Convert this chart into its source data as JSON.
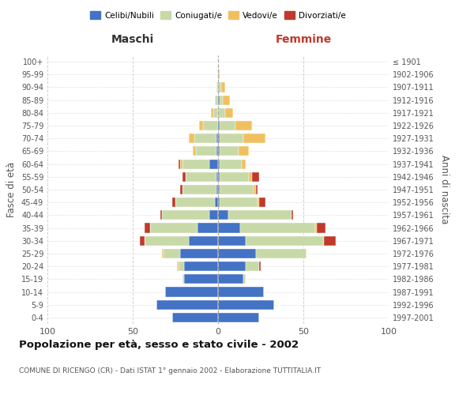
{
  "age_groups": [
    "0-4",
    "5-9",
    "10-14",
    "15-19",
    "20-24",
    "25-29",
    "30-34",
    "35-39",
    "40-44",
    "45-49",
    "50-54",
    "55-59",
    "60-64",
    "65-69",
    "70-74",
    "75-79",
    "80-84",
    "85-89",
    "90-94",
    "95-99",
    "100+"
  ],
  "birth_years": [
    "1997-2001",
    "1992-1996",
    "1987-1991",
    "1982-1986",
    "1977-1981",
    "1972-1976",
    "1967-1971",
    "1962-1966",
    "1957-1961",
    "1952-1956",
    "1947-1951",
    "1942-1946",
    "1937-1941",
    "1932-1936",
    "1927-1931",
    "1922-1926",
    "1917-1921",
    "1912-1916",
    "1907-1911",
    "1902-1906",
    "≤ 1901"
  ],
  "male_celibi": [
    27,
    36,
    31,
    20,
    20,
    22,
    17,
    12,
    5,
    2,
    1,
    1,
    5,
    1,
    1,
    0,
    0,
    0,
    0,
    0,
    0
  ],
  "male_coniugati": [
    0,
    0,
    0,
    1,
    3,
    10,
    26,
    28,
    28,
    23,
    20,
    18,
    16,
    12,
    13,
    9,
    3,
    2,
    1,
    0,
    0
  ],
  "male_vedovi": [
    0,
    0,
    0,
    0,
    1,
    1,
    0,
    0,
    0,
    0,
    0,
    0,
    1,
    2,
    3,
    2,
    1,
    0,
    0,
    0,
    0
  ],
  "male_divorziati": [
    0,
    0,
    0,
    0,
    0,
    0,
    3,
    3,
    1,
    2,
    1,
    2,
    1,
    0,
    0,
    0,
    0,
    0,
    0,
    0,
    0
  ],
  "female_celibi": [
    24,
    33,
    27,
    15,
    16,
    22,
    16,
    13,
    6,
    1,
    1,
    1,
    1,
    1,
    1,
    1,
    0,
    1,
    0,
    0,
    0
  ],
  "female_coniugati": [
    0,
    0,
    0,
    1,
    8,
    30,
    46,
    44,
    37,
    22,
    20,
    17,
    13,
    11,
    14,
    9,
    4,
    2,
    2,
    0,
    0
  ],
  "female_vedovi": [
    0,
    0,
    0,
    0,
    0,
    0,
    0,
    1,
    0,
    1,
    1,
    2,
    2,
    6,
    13,
    10,
    5,
    4,
    2,
    1,
    0
  ],
  "female_divorziati": [
    0,
    0,
    0,
    0,
    1,
    0,
    7,
    5,
    1,
    4,
    1,
    4,
    0,
    0,
    0,
    0,
    0,
    0,
    0,
    0,
    0
  ],
  "colors": {
    "celibi": "#4472c4",
    "coniugati": "#c8d9a8",
    "vedovi": "#f0c060",
    "divorziati": "#c0392b"
  },
  "xlim": 100,
  "title": "Popolazione per età, sesso e stato civile - 2002",
  "subtitle": "COMUNE DI RICENGO (CR) - Dati ISTAT 1° gennaio 2002 - Elaborazione TUTTITALIA.IT",
  "xlabel_left": "Maschi",
  "xlabel_right": "Femmine",
  "ylabel_left": "Fasce di età",
  "ylabel_right": "Anni di nascita",
  "bg_color": "#ffffff",
  "grid_color": "#cccccc"
}
